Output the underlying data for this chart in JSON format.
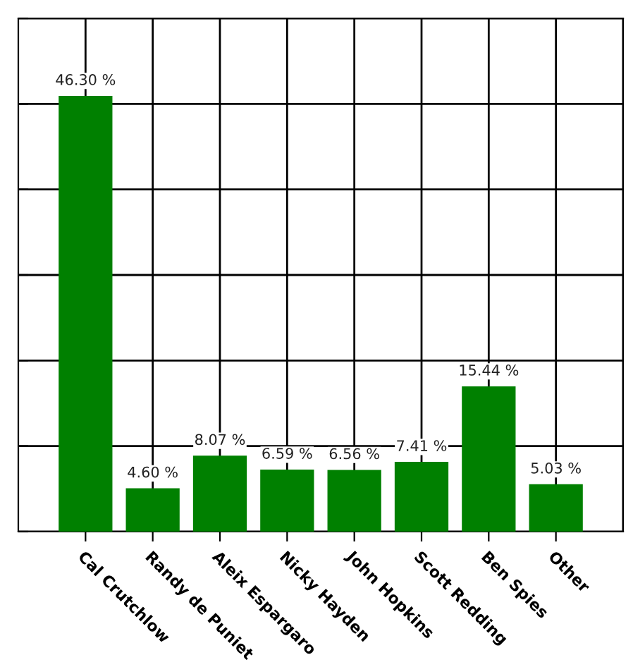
{
  "chart_data": {
    "type": "bar",
    "categories": [
      "Cal Crutchlow",
      "Randy de Puniet",
      "Aleix Espargaro",
      "Nicky Hayden",
      "John Hopkins",
      "Scott Redding",
      "Ben Spies",
      "Other"
    ],
    "values": [
      46.3,
      4.6,
      8.07,
      6.59,
      6.56,
      7.41,
      15.44,
      5.03
    ],
    "value_labels": [
      "46.30 %",
      "4.60 %",
      "8.07 %",
      "6.59 %",
      "6.56 %",
      "7.41 %",
      "15.44 %",
      "5.03 %"
    ],
    "color": "#008000",
    "ylim": [
      0,
      54.54
    ],
    "yticks": [
      {
        "value": 0,
        "label": null
      },
      {
        "value": 9.09,
        "label": null
      },
      {
        "value": 18.18,
        "label": null
      },
      {
        "value": 27.27,
        "label": null
      },
      {
        "value": 36.36,
        "label": null
      },
      {
        "value": 45.45,
        "label": null
      },
      {
        "value": 54.54,
        "label": null
      }
    ],
    "grid": true,
    "tick_labels": "x"
  }
}
